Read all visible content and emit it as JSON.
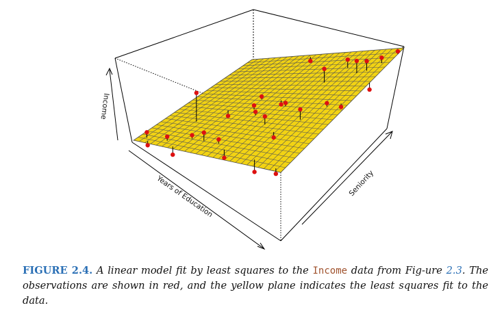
{
  "figure": {
    "axes": {
      "z_label": "Income",
      "x_label": "Years of Education",
      "y_label": "Seniority"
    },
    "colors": {
      "plane_fill": "#f2d313",
      "grid": "#555555",
      "points": "#dd1111",
      "box": "#000000"
    },
    "observations_count": 30
  },
  "caption": {
    "label": "FIGURE 2.4.",
    "text_1": " A linear model fit by least squares to the ",
    "code": "Income",
    "text_2": " data from Fig-ure ",
    "ref": "2.3",
    "text_3": ". The observations are shown in red, and the yellow plane indicates the least squares fit to the data."
  }
}
